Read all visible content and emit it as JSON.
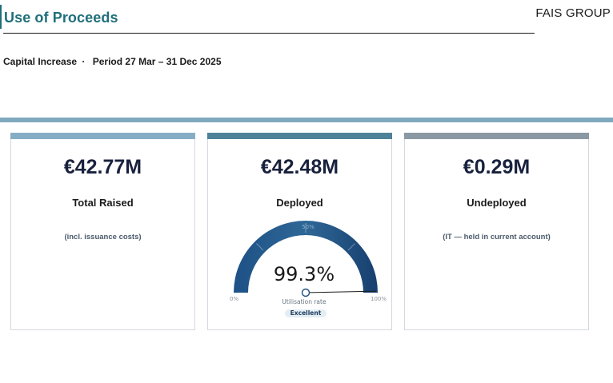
{
  "header": {
    "title": "Use of Proceeds",
    "brand": "FAIS GROUP"
  },
  "subheader": {
    "label": "Capital Increase",
    "separator": "·",
    "period": "Period 27 Mar – 31 Dec 2025"
  },
  "cards": [
    {
      "value": "€42.77M",
      "label": "Total Raised",
      "note": "(incl. issuance costs)",
      "accent": "#85aec6"
    },
    {
      "value": "€42.48M",
      "label": "Deployed",
      "accent": "#4e8299",
      "gauge": {
        "percent_text": "99.3%",
        "value": 0.993,
        "min_label": "0%",
        "mid_label": "50%",
        "max_label": "100%",
        "caption": "Utilisation rate",
        "status": "Excellent",
        "color": "#1d4e7e"
      }
    },
    {
      "value": "€0.29M",
      "label": "Undeployed",
      "note": "(IT — held in current account)",
      "accent": "#8a99a3"
    }
  ],
  "colors": {
    "title": "#1f6f7a",
    "band": "#7fa9bd",
    "value_text": "#18213d"
  }
}
